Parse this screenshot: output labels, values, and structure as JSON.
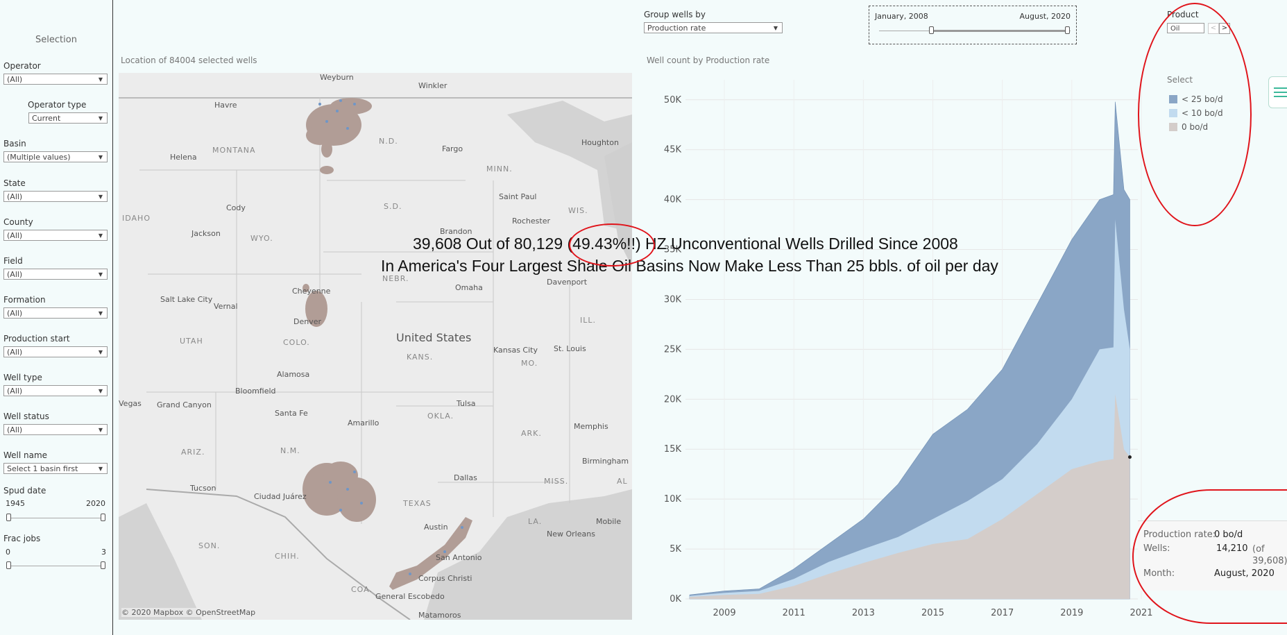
{
  "sidebar": {
    "title": "Selection",
    "filters": [
      {
        "label": "Operator",
        "value": "(All)"
      },
      {
        "label": "Operator type",
        "value": "Current"
      },
      {
        "label": "Basin",
        "value": "(Multiple values)"
      },
      {
        "label": "State",
        "value": "(All)"
      },
      {
        "label": "County",
        "value": "(All)"
      },
      {
        "label": "Field",
        "value": "(All)"
      },
      {
        "label": "Formation",
        "value": "(All)"
      },
      {
        "label": "Production start",
        "value": "(All)"
      },
      {
        "label": "Well type",
        "value": "(All)"
      },
      {
        "label": "Well status",
        "value": "(All)"
      },
      {
        "label": "Well name",
        "value": "Select 1 basin first"
      }
    ],
    "spud": {
      "label": "Spud date",
      "min": "1945",
      "max": "2020"
    },
    "frac": {
      "label": "Frac jobs",
      "min": "0",
      "max": "3"
    }
  },
  "map": {
    "title": "Location of 84004 selected wells",
    "credit": "© 2020 Mapbox  © OpenStreetMap",
    "cities": [
      "Weyburn",
      "Winkler",
      "Havre",
      "Helena",
      "MONTANA",
      "N.D.",
      "Fargo",
      "Houghton",
      "MINN.",
      "Cody",
      "S.D.",
      "Saint Paul",
      "WIS.",
      "IDAHO",
      "Jackson",
      "WYO.",
      "Brandon",
      "Rochester",
      "NEBR.",
      "Omaha",
      "Davenport",
      "Salt Lake City",
      "Vernal",
      "Cheyenne",
      "Denver",
      "ILL.",
      "UTAH",
      "COLO.",
      "United States",
      "Kansas City",
      "St. Louis",
      "KANS.",
      "MO.",
      "Alamosa",
      "Vegas",
      "Grand Canyon",
      "Bloomfield",
      "Tulsa",
      "Santa Fe",
      "OKLA.",
      "Amarillo",
      "ARK.",
      "Memphis",
      "ARIZ.",
      "N.M.",
      "Birmingham",
      "Tucson",
      "Ciudad Juárez",
      "Dallas",
      "TEXAS",
      "MISS.",
      "AL",
      "LA.",
      "Mobile",
      "SON.",
      "CHIH.",
      "Austin",
      "New Orleans",
      "San Antonio",
      "Corpus Christi",
      "COA.",
      "General Escobedo",
      "Matamoros"
    ]
  },
  "controls": {
    "group_label": "Group wells by",
    "group_value": "Production rate",
    "date_start": "January, 2008",
    "date_end": "August, 2020",
    "product_label": "Product",
    "product_value": "Oil"
  },
  "chart_title": "Well count by Production rate",
  "legend": {
    "title": "Select",
    "items": [
      {
        "label": "< 25 bo/d",
        "color": "#8aa6c6"
      },
      {
        "label": "< 10 bo/d",
        "color": "#c2dbef"
      },
      {
        "label": "0 bo/d",
        "color": "#d4cdca"
      }
    ]
  },
  "headline": {
    "line1": "39,608 Out of 80,129 (49.43%!!) HZ Unconventional Wells Drilled Since 2008",
    "line2": "In America's Four Largest Shale Oil Basins Now Make Less Than 25 bbls. of oil per day"
  },
  "tooltip": {
    "rows": [
      {
        "key": "Production rate:",
        "value": "0 bo/d"
      },
      {
        "key": "Wells:",
        "value": "14,210",
        "note": "(of 39,608)"
      },
      {
        "key": "Month:",
        "value": "August, 2020"
      }
    ]
  },
  "chart_data": {
    "type": "area",
    "title": "Well count by Production rate",
    "xlabel": "",
    "ylabel": "",
    "xlim": [
      2008.0,
      2020.67
    ],
    "ylim": [
      0,
      52000
    ],
    "y_ticks": [
      "0K",
      "5K",
      "10K",
      "15K",
      "20K",
      "25K",
      "30K",
      "35K",
      "40K",
      "45K",
      "50K"
    ],
    "x_ticks": [
      "2009",
      "2011",
      "2013",
      "2015",
      "2017",
      "2019",
      "2021"
    ],
    "x": [
      2008.0,
      2009.0,
      2010.0,
      2011.0,
      2012.0,
      2013.0,
      2014.0,
      2015.0,
      2016.0,
      2017.0,
      2018.0,
      2019.0,
      2019.8,
      2020.2,
      2020.25,
      2020.5,
      2020.67
    ],
    "series": [
      {
        "name": "< 25 bo/d",
        "values": [
          400,
          800,
          1000,
          3000,
          5500,
          8000,
          11500,
          16500,
          19000,
          23000,
          29500,
          36000,
          40000,
          40500,
          49800,
          41000,
          40000
        ]
      },
      {
        "name": "< 10 bo/d",
        "values": [
          300,
          600,
          800,
          2000,
          3700,
          5000,
          6200,
          8000,
          9800,
          12000,
          15500,
          20000,
          25000,
          25200,
          38000,
          29000,
          25000
        ]
      },
      {
        "name": "0 bo/d",
        "values": [
          200,
          400,
          500,
          1300,
          2500,
          3600,
          4600,
          5500,
          6000,
          8000,
          10500,
          13000,
          13800,
          14000,
          20500,
          15000,
          14210
        ]
      }
    ]
  }
}
